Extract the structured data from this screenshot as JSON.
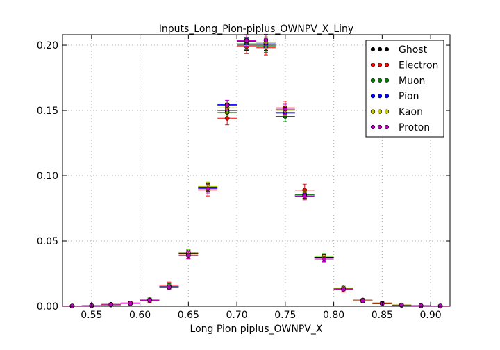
{
  "chart_data": {
    "type": "scatter",
    "title": "Inputs_Long_Pion-piplus_OWNPV_X_Liny",
    "xlabel": "Long Pion piplus_OWNPV_X",
    "ylabel": "",
    "xlim": [
      0.52,
      0.92
    ],
    "ylim": [
      0.0,
      0.208
    ],
    "xticks": [
      "0.55",
      "0.60",
      "0.65",
      "0.70",
      "0.75",
      "0.80",
      "0.85",
      "0.90"
    ],
    "xtick_values": [
      0.55,
      0.6,
      0.65,
      0.7,
      0.75,
      0.8,
      0.85,
      0.9
    ],
    "yticks": [
      "0.00",
      "0.05",
      "0.10",
      "0.15",
      "0.20"
    ],
    "ytick_values": [
      0.0,
      0.05,
      0.1,
      0.15,
      0.2
    ],
    "grid": true,
    "legend_position": "top-right",
    "bin_width": 0.02,
    "x": [
      0.53,
      0.55,
      0.57,
      0.59,
      0.61,
      0.63,
      0.65,
      0.67,
      0.69,
      0.71,
      0.73,
      0.75,
      0.77,
      0.79,
      0.81,
      0.83,
      0.85,
      0.87,
      0.89,
      0.91
    ],
    "series": [
      {
        "name": "Ghost",
        "color": "#000000",
        "values": [
          0.0002,
          0.0004,
          0.001,
          0.0022,
          0.0048,
          0.015,
          0.0405,
          0.091,
          0.15,
          0.2,
          0.2,
          0.148,
          0.085,
          0.0375,
          0.0135,
          0.0045,
          0.002,
          0.0008,
          0.0003,
          0.0001
        ],
        "errors": [
          0.0002,
          0.0003,
          0.0005,
          0.0008,
          0.0012,
          0.0018,
          0.0025,
          0.003,
          0.0035,
          0.004,
          0.004,
          0.0035,
          0.0025,
          0.0018,
          0.0012,
          0.0008,
          0.0005,
          0.0003,
          0.0002,
          0.0001
        ]
      },
      {
        "name": "Electron",
        "color": "#ff0000",
        "values": [
          0.0001,
          0.0003,
          0.0015,
          0.0025,
          0.0045,
          0.016,
          0.04,
          0.089,
          0.144,
          0.199,
          0.198,
          0.152,
          0.089,
          0.037,
          0.013,
          0.004,
          0.0025,
          0.001,
          0.0005,
          0.0002
        ],
        "errors": [
          0.0002,
          0.0004,
          0.0008,
          0.0012,
          0.0018,
          0.0025,
          0.0035,
          0.0045,
          0.005,
          0.0055,
          0.0055,
          0.005,
          0.0045,
          0.003,
          0.002,
          0.0012,
          0.0008,
          0.0005,
          0.0003,
          0.0002
        ]
      },
      {
        "name": "Muon",
        "color": "#008000",
        "values": [
          0.0002,
          0.0004,
          0.0012,
          0.002,
          0.005,
          0.0152,
          0.041,
          0.0915,
          0.1485,
          0.201,
          0.199,
          0.1455,
          0.0855,
          0.0385,
          0.014,
          0.0048,
          0.0022,
          0.0009,
          0.0004,
          0.0002
        ],
        "errors": [
          0.0002,
          0.0003,
          0.0006,
          0.0009,
          0.0014,
          0.002,
          0.0028,
          0.0035,
          0.004,
          0.0045,
          0.0045,
          0.004,
          0.0028,
          0.002,
          0.0013,
          0.0009,
          0.0006,
          0.0004,
          0.0002,
          0.0001
        ]
      },
      {
        "name": "Pion",
        "color": "#0000ff",
        "values": [
          0.0002,
          0.0004,
          0.0011,
          0.0022,
          0.0047,
          0.0151,
          0.0402,
          0.0905,
          0.1545,
          0.203,
          0.201,
          0.1485,
          0.0845,
          0.037,
          0.0136,
          0.0044,
          0.0021,
          0.0008,
          0.0003,
          0.0001
        ],
        "errors": [
          0.0001,
          0.0002,
          0.0004,
          0.0006,
          0.001,
          0.0015,
          0.002,
          0.0025,
          0.0028,
          0.003,
          0.003,
          0.0028,
          0.002,
          0.0015,
          0.001,
          0.0006,
          0.0004,
          0.0002,
          0.0001,
          0.0001
        ]
      },
      {
        "name": "Kaon",
        "color": "#cccc00",
        "values": [
          0.0002,
          0.0004,
          0.0012,
          0.0021,
          0.0049,
          0.0148,
          0.0408,
          0.0918,
          0.152,
          0.204,
          0.202,
          0.15,
          0.0848,
          0.0382,
          0.0138,
          0.0046,
          0.0021,
          0.0009,
          0.0004,
          0.0001
        ],
        "errors": [
          0.0002,
          0.0003,
          0.0006,
          0.0009,
          0.0013,
          0.0019,
          0.0027,
          0.0033,
          0.0038,
          0.0043,
          0.0043,
          0.0038,
          0.0027,
          0.0019,
          0.0012,
          0.0009,
          0.0006,
          0.0004,
          0.0002,
          0.0001
        ]
      },
      {
        "name": "Proton",
        "color": "#bf00bf",
        "values": [
          0.0002,
          0.0005,
          0.0011,
          0.0023,
          0.0046,
          0.0147,
          0.039,
          0.09,
          0.154,
          0.2035,
          0.204,
          0.151,
          0.0842,
          0.0362,
          0.013,
          0.0042,
          0.0019,
          0.0008,
          0.0005,
          0.0002
        ],
        "errors": [
          0.0002,
          0.0003,
          0.0006,
          0.0009,
          0.0013,
          0.0019,
          0.0027,
          0.0033,
          0.0038,
          0.0043,
          0.0043,
          0.0038,
          0.0027,
          0.0019,
          0.0012,
          0.0009,
          0.0006,
          0.0004,
          0.0002,
          0.0001
        ]
      }
    ]
  }
}
